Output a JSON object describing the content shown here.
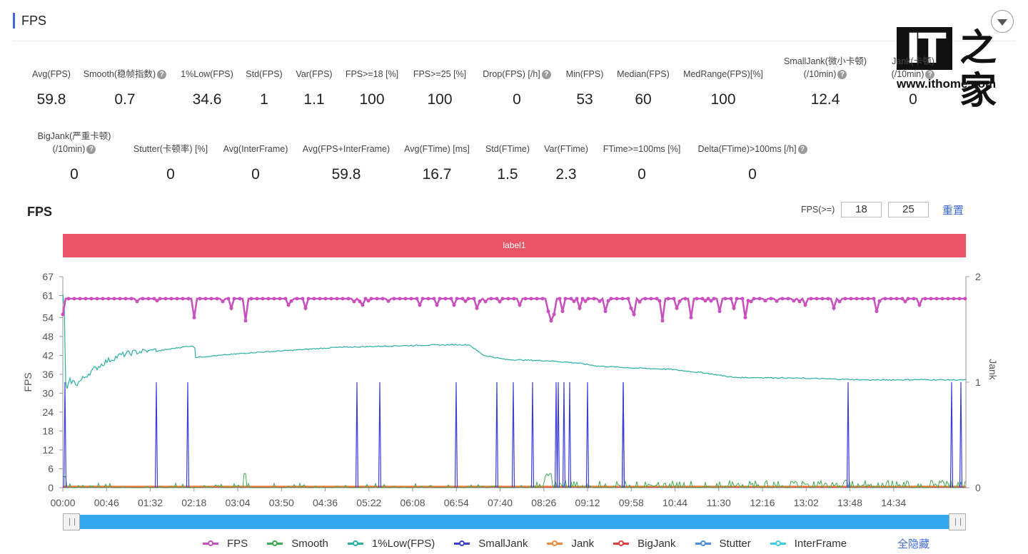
{
  "section": {
    "title": "FPS"
  },
  "logo": {
    "mark": "IT",
    "cn": "之家",
    "url": "www.ithome.com"
  },
  "metrics_row1": [
    {
      "label": "Avg(FPS)",
      "value": "59.8",
      "help": false
    },
    {
      "label": "Smooth(稳帧指数)",
      "value": "0.7",
      "help": true
    },
    {
      "label": "1%Low(FPS)",
      "value": "34.6",
      "help": false
    },
    {
      "label": "Std(FPS)",
      "value": "1",
      "help": false
    },
    {
      "label": "Var(FPS)",
      "value": "1.1",
      "help": false
    },
    {
      "label": "FPS>=18 [%]",
      "value": "100",
      "help": false
    },
    {
      "label": "FPS>=25 [%]",
      "value": "100",
      "help": false
    },
    {
      "label": "Drop(FPS) [/h]",
      "value": "0",
      "help": true
    },
    {
      "label": "Min(FPS)",
      "value": "53",
      "help": false
    },
    {
      "label": "Median(FPS)",
      "value": "60",
      "help": false
    },
    {
      "label": "MedRange(FPS)[%]",
      "value": "100",
      "help": false
    },
    {
      "label": "SmallJank(微小卡顿)",
      "label2": "(/10min)",
      "value": "12.4",
      "help": true
    },
    {
      "label": "Jank(卡顿)",
      "label2": "(/10min)",
      "value": "0",
      "help": true
    }
  ],
  "metrics_row2": [
    {
      "label": "BigJank(严重卡顿)",
      "label2": "(/10min)",
      "value": "0",
      "help": true
    },
    {
      "label": "Stutter(卡顿率) [%]",
      "value": "0",
      "help": false
    },
    {
      "label": "Avg(InterFrame)",
      "value": "0",
      "help": false
    },
    {
      "label": "Avg(FPS+InterFrame)",
      "value": "59.8",
      "help": false
    },
    {
      "label": "Avg(FTime) [ms]",
      "value": "16.7",
      "help": false
    },
    {
      "label": "Std(FTime)",
      "value": "1.5",
      "help": false
    },
    {
      "label": "Var(FTime)",
      "value": "2.3",
      "help": false
    },
    {
      "label": "FTime>=100ms [%]",
      "value": "0",
      "help": false
    },
    {
      "label": "Delta(FTime)>100ms [/h]",
      "value": "0",
      "help": true
    }
  ],
  "chart_header": {
    "title": "FPS",
    "threshold_label": "FPS(>=)",
    "threshold_1": "18",
    "threshold_2": "25",
    "reset_label": "重置",
    "band_label": "label1"
  },
  "chart_data": {
    "type": "line",
    "xlabel": "",
    "ylabel": "FPS",
    "y2label": "Jank",
    "ylim": [
      0,
      67
    ],
    "y2lim": [
      0,
      2
    ],
    "yticks": [
      0,
      6,
      12,
      18,
      24,
      30,
      36,
      42,
      48,
      54,
      61,
      67
    ],
    "y2ticks": [
      0,
      1,
      2
    ],
    "x_duration_seconds": 950,
    "xticks": [
      "00:00",
      "00:46",
      "01:32",
      "02:18",
      "03:04",
      "03:50",
      "04:36",
      "05:22",
      "06:08",
      "06:54",
      "07:40",
      "08:26",
      "09:12",
      "09:58",
      "10:44",
      "11:30",
      "12:16",
      "13:02",
      "13:48",
      "14:34"
    ],
    "grid": false,
    "legend_position": "bottom",
    "series": [
      {
        "name": "FPS",
        "color": "#c94fbf",
        "marker": true,
        "baseline": 60,
        "dips": [
          [
            0,
            55
          ],
          [
            130,
            57
          ],
          [
            178,
            57
          ],
          [
            185,
            54
          ],
          [
            235,
            57
          ],
          [
            255,
            53
          ],
          [
            316,
            58
          ],
          [
            340,
            57
          ],
          [
            420,
            58
          ],
          [
            450,
            58
          ],
          [
            500,
            58
          ],
          [
            523,
            58
          ],
          [
            547,
            58
          ],
          [
            580,
            57
          ],
          [
            610,
            58
          ],
          [
            640,
            58
          ],
          [
            680,
            56
          ],
          [
            682,
            54
          ],
          [
            685,
            53
          ],
          [
            688,
            55
          ],
          [
            700,
            56
          ],
          [
            725,
            57
          ],
          [
            760,
            56
          ],
          [
            795,
            57
          ],
          [
            800,
            55
          ],
          [
            818,
            57
          ],
          [
            840,
            53
          ],
          [
            850,
            56
          ],
          [
            860,
            57
          ],
          [
            880,
            54
          ],
          [
            920,
            56
          ],
          [
            940,
            57
          ],
          [
            950,
            57
          ],
          [
            955,
            54
          ],
          [
            990,
            57
          ],
          [
            1040,
            58
          ],
          [
            1080,
            57
          ],
          [
            1140,
            56
          ],
          [
            1150,
            54
          ],
          [
            1200,
            58
          ],
          [
            1250,
            58
          ]
        ]
      },
      {
        "name": "Smooth",
        "color": "#3daa4d"
      },
      {
        "name": "1%Low(FPS)",
        "color": "#2ab0a2",
        "points": [
          [
            0,
            61
          ],
          [
            2,
            58
          ],
          [
            4,
            33
          ],
          [
            6,
            31
          ],
          [
            10,
            34
          ],
          [
            20,
            33
          ],
          [
            40,
            37
          ],
          [
            60,
            40
          ],
          [
            80,
            42
          ],
          [
            100,
            43
          ],
          [
            120,
            43.5
          ],
          [
            130,
            44
          ],
          [
            131,
            43.3
          ],
          [
            160,
            44.4
          ],
          [
            180,
            45
          ],
          [
            185,
            44.5
          ],
          [
            186,
            41.4
          ],
          [
            220,
            42
          ],
          [
            260,
            42.8
          ],
          [
            320,
            43.6
          ],
          [
            380,
            44.5
          ],
          [
            460,
            45
          ],
          [
            520,
            45.3
          ],
          [
            560,
            45.4
          ],
          [
            570,
            45.3
          ],
          [
            580,
            43.5
          ],
          [
            590,
            42
          ],
          [
            620,
            40.7
          ],
          [
            680,
            40.3
          ],
          [
            720,
            39.6
          ],
          [
            750,
            38.6
          ],
          [
            800,
            38
          ],
          [
            850,
            37.6
          ],
          [
            900,
            36.4
          ],
          [
            940,
            35
          ],
          [
            1000,
            34.9
          ],
          [
            1060,
            34.6
          ],
          [
            1130,
            34.2
          ],
          [
            1200,
            34.3
          ],
          [
            1266,
            34.2
          ]
        ]
      },
      {
        "name": "SmallJank",
        "color": "#3b3fd1",
        "axis": "y2",
        "spikes": [
          3,
          131,
          175,
          412,
          444,
          551,
          608,
          631,
          658,
          691,
          694,
          702,
          710,
          735,
          785,
          785,
          1100,
          1245,
          1258
        ]
      },
      {
        "name": "Jank",
        "color": "#f08a3c",
        "axis": "y2"
      },
      {
        "name": "BigJank",
        "color": "#e23c3c",
        "axis": "y2"
      },
      {
        "name": "Stutter",
        "color": "#4a8de0"
      },
      {
        "name": "InterFrame",
        "color": "#3ccfe0"
      }
    ]
  },
  "legend_hide_all": "全隐藏"
}
